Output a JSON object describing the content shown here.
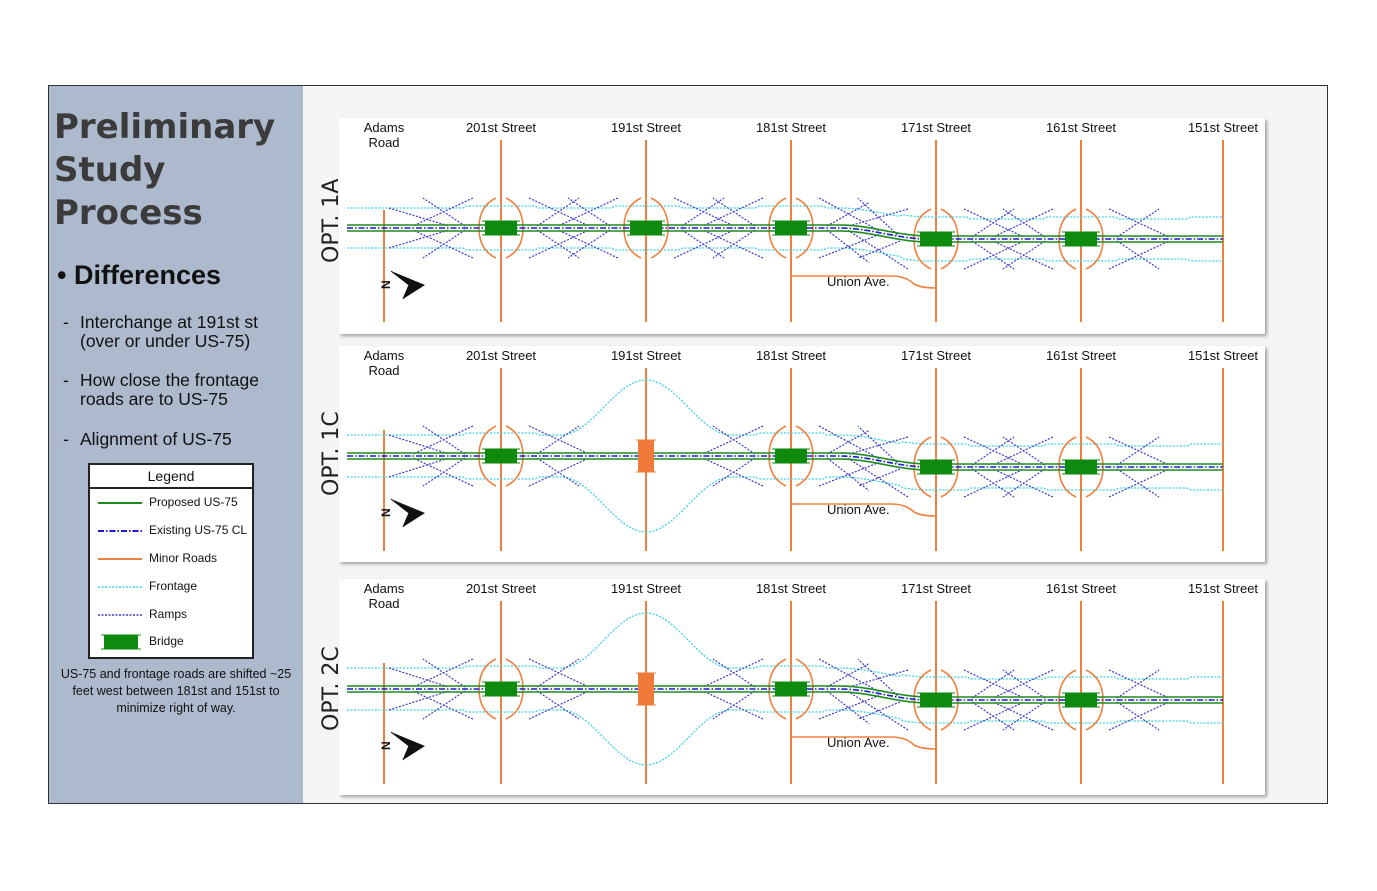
{
  "sidebar": {
    "title_lines": [
      "Preliminary",
      "Study",
      "Process"
    ],
    "main_bullet": "Differences",
    "sub_bullets": [
      "Interchange at 191st st (over or under US-75)",
      "How close the frontage roads are to US-75",
      "Alignment of US-75"
    ],
    "footnote": "US-75 and frontage roads are shifted ~25 feet west between 181st and 151st to minimize right of way."
  },
  "legend": {
    "title": "Legend",
    "items": [
      {
        "label": "Proposed US-75",
        "style": "solid",
        "color": "#1e8c1e"
      },
      {
        "label": "Existing US-75 CL",
        "style": "dash-dot",
        "color": "#1a1ad0"
      },
      {
        "label": "Minor Roads",
        "style": "solid",
        "color": "#f08040"
      },
      {
        "label": "Frontage",
        "style": "dotted",
        "color": "#3ed3e8"
      },
      {
        "label": "Ramps",
        "style": "dotted",
        "color": "#3a3acc"
      },
      {
        "label": "Bridge",
        "style": "box",
        "color": "#0e8a0e"
      }
    ]
  },
  "colors": {
    "proposed": "#1e8c1e",
    "existing": "#1a1ad0",
    "minor": "#f08040",
    "frontage": "#3ed3e8",
    "ramps": "#3a3acc",
    "bridge": "#0e8a0e",
    "bridge_191_alt": "#f07a3a"
  },
  "streets": [
    "Adams Road",
    "201st Street",
    "191st Street",
    "181st Street",
    "171st Street",
    "161st Street",
    "151st Street"
  ],
  "panels": [
    {
      "label": "OPT. 1A",
      "union_label": "Union Ave.",
      "north_label": "N",
      "interchange_191": "diamond"
    },
    {
      "label": "OPT. 1C",
      "union_label": "Union Ave.",
      "north_label": "N",
      "interchange_191": "loop"
    },
    {
      "label": "OPT. 2C",
      "union_label": "Union Ave.",
      "north_label": "N",
      "interchange_191": "loop"
    }
  ]
}
